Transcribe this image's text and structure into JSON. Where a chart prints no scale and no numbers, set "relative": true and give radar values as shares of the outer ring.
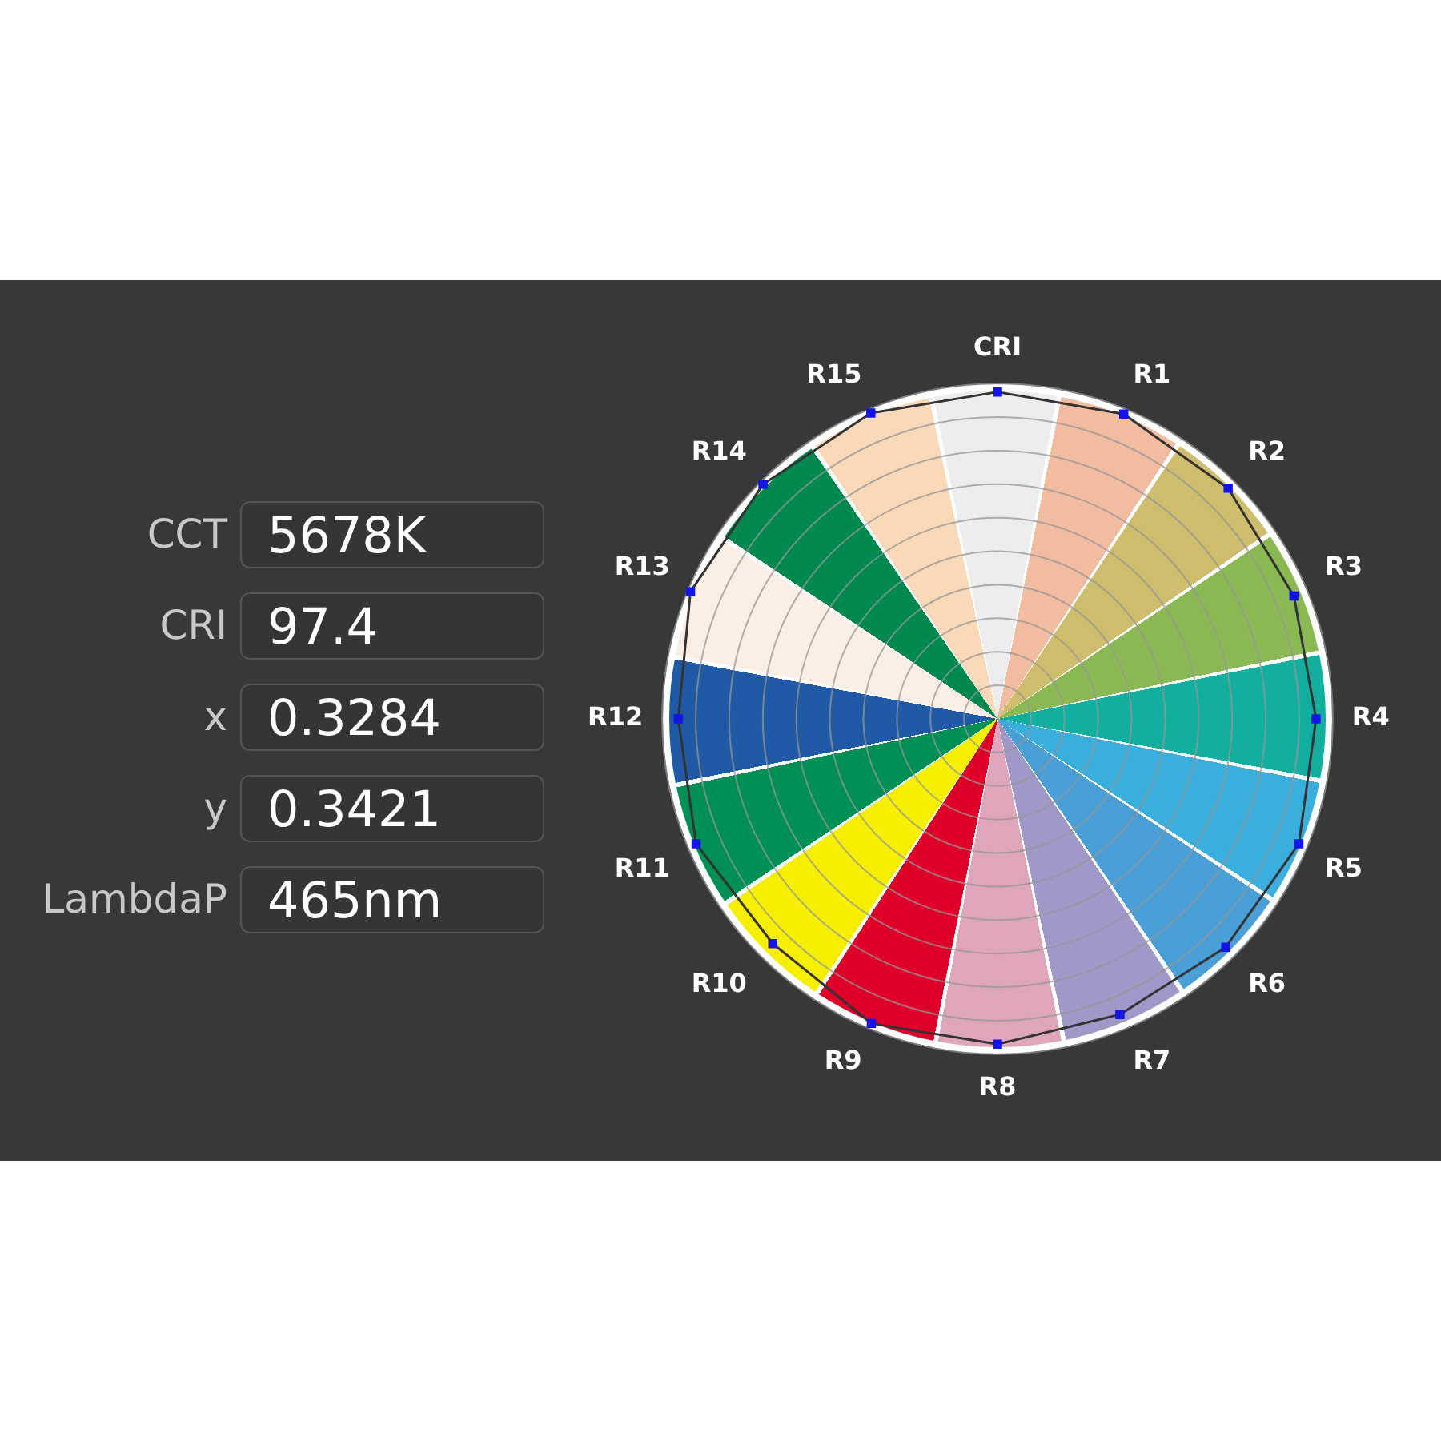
{
  "chart_data": [
    {
      "type": "other",
      "annotations": [
        "CCT",
        "5678K",
        "CRI",
        "97.4",
        "x",
        "0.3284",
        "y",
        "0.3421",
        "LambdaP",
        "465nm"
      ]
    },
    {
      "type": "radar",
      "relative": true,
      "grid": true,
      "legend": false,
      "marker": "square",
      "line_style": "solid",
      "categories": [
        "CRI",
        "R1",
        "R2",
        "R3",
        "R4",
        "R5",
        "R6",
        "R7",
        "R8",
        "R9",
        "R10",
        "R11",
        "R12",
        "R13",
        "R14",
        "R15"
      ],
      "colors": [
        "#ededf0",
        "#f2bca0",
        "#cdbd6c",
        "#8ab954",
        "#12ae9e",
        "#3aaedc",
        "#4a9fd6",
        "#a098c8",
        "#dfa6bb",
        "#de0029",
        "#f6f000",
        "#008f55",
        "#205aa6",
        "#fbeee4",
        "#00894f",
        "#fad9b8"
      ],
      "series": [
        {
          "color": "#333333",
          "values": [
            0.975,
            0.984,
            0.973,
            0.957,
            0.95,
            0.973,
            0.963,
            0.954,
            0.97,
            0.983,
            0.948,
            0.973,
            0.952,
            0.991,
            0.989,
            0.987
          ]
        }
      ]
    }
  ]
}
